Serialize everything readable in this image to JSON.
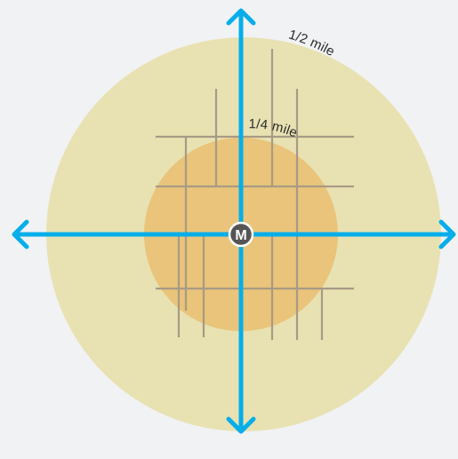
{
  "rings": {
    "outer": {
      "label": "1/2 mile",
      "color": "#e8e2b3"
    },
    "inner": {
      "label": "1/4 mile",
      "color": "#e9c47a"
    }
  },
  "station": {
    "letter": "M",
    "color": "#555555"
  },
  "colors": {
    "axis": "#06aeea",
    "street": "#a89a84",
    "background": "#f1f2f4"
  },
  "icons": {
    "station": "metro-m-icon",
    "arrows": [
      "arrow-up-icon",
      "arrow-down-icon",
      "arrow-left-icon",
      "arrow-right-icon"
    ]
  }
}
